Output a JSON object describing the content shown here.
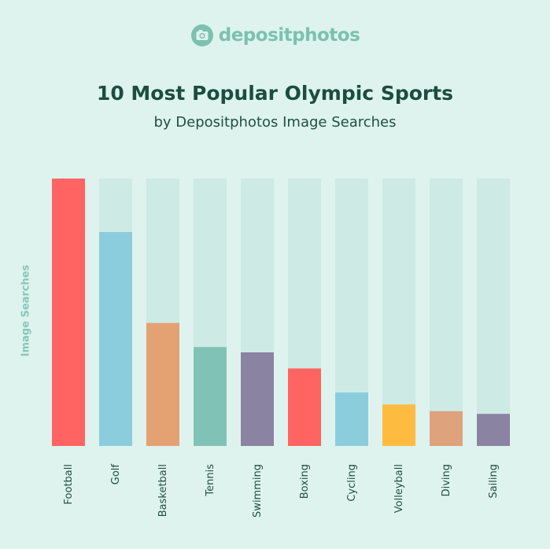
{
  "logo": {
    "text": "depositphotos",
    "icon": "camera-icon"
  },
  "chart_data": {
    "type": "bar",
    "title": "10 Most Popular Olympic Sports",
    "subtitle": "by Depositphotos Image Searches",
    "xlabel": "",
    "ylabel": "Image Searches",
    "ylim": [
      0,
      100
    ],
    "grid": false,
    "legend": "none",
    "categories": [
      "Football",
      "Golf",
      "Basketball",
      "Tennis",
      "Swimming",
      "Boxing",
      "Cycling",
      "Volleyball",
      "Diving",
      "Sailing"
    ],
    "values": [
      100,
      80,
      46,
      37,
      35,
      29,
      20,
      15.5,
      13,
      12
    ],
    "colors": [
      "#ff6462",
      "#8ccddd",
      "#e4a273",
      "#80c3b6",
      "#8a83a1",
      "#ff6462",
      "#8ccddd",
      "#fdbc40",
      "#dea27c",
      "#8a83a1"
    ],
    "track_color": "#cdeae5"
  }
}
